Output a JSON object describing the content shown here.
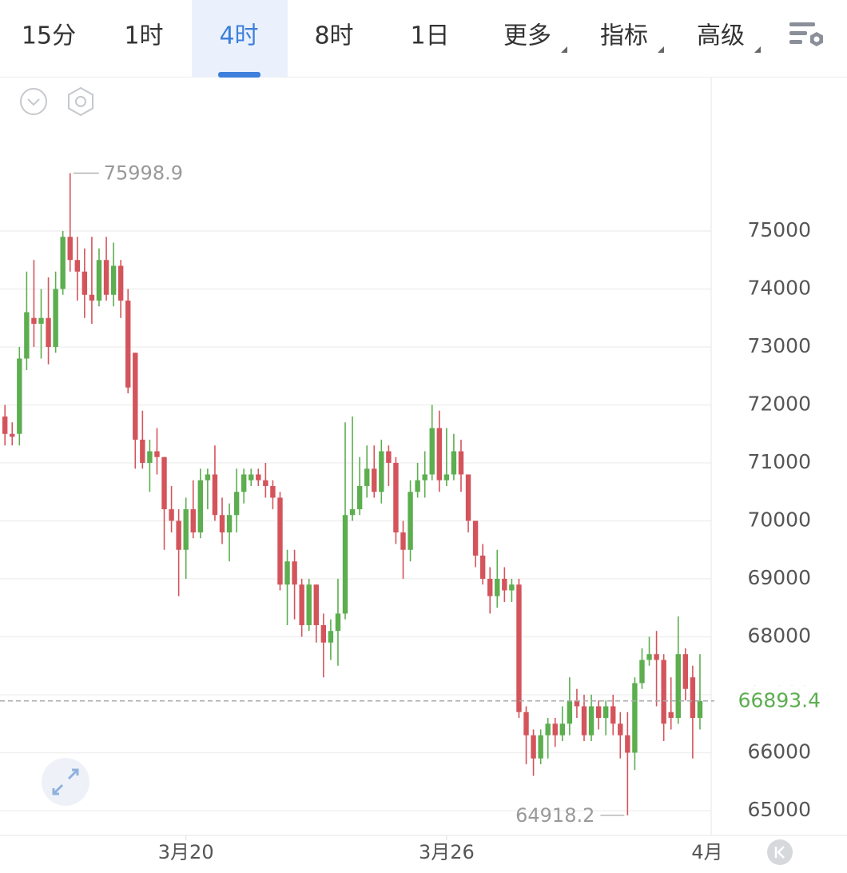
{
  "ui": {
    "tabs": [
      "15分",
      "1时",
      "4时",
      "8时",
      "1日",
      "更多",
      "指标",
      "高级"
    ],
    "selected_tab": 2
  },
  "chart_data": {
    "type": "candlestick",
    "up_color": "#5cae4f",
    "down_color": "#d4545c",
    "grid": true,
    "ylim": [
      64572,
      77648
    ],
    "yticks": [
      65000,
      66000,
      67000,
      68000,
      69000,
      70000,
      71000,
      72000,
      73000,
      74000,
      75000
    ],
    "categories": [
      null,
      null,
      null,
      null,
      null,
      null,
      null,
      null,
      null,
      null,
      null,
      null,
      null,
      null,
      null,
      null,
      null,
      null,
      null,
      null,
      null,
      null,
      null,
      null,
      null,
      "3月20",
      null,
      null,
      null,
      null,
      null,
      null,
      null,
      null,
      null,
      null,
      null,
      null,
      null,
      null,
      null,
      null,
      null,
      null,
      null,
      null,
      null,
      null,
      null,
      null,
      null,
      null,
      null,
      null,
      null,
      null,
      null,
      null,
      null,
      null,
      null,
      "3月26",
      null,
      null,
      null,
      null,
      null,
      null,
      null,
      null,
      null,
      null,
      null,
      null,
      null,
      null,
      null,
      null,
      null,
      null,
      null,
      null,
      null,
      null,
      null,
      null,
      null,
      null,
      null,
      null,
      null,
      null,
      null,
      null,
      null,
      null,
      null
    ],
    "end_label": "4月",
    "open": [
      71800,
      71500,
      71500,
      72800,
      73500,
      73400,
      73500,
      73000,
      74000,
      74900,
      74500,
      74300,
      73900,
      73800,
      74500,
      73900,
      74400,
      73800,
      72900,
      71400,
      71000,
      71200,
      71100,
      70200,
      70000,
      69500,
      70200,
      69800,
      70700,
      70800,
      70100,
      69800,
      70100,
      70500,
      70700,
      70800,
      70700,
      70600,
      70400,
      68900,
      69300,
      68900,
      68200,
      68900,
      68200,
      67900,
      68100,
      68400,
      70100,
      70200,
      70600,
      70900,
      70500,
      71200,
      71000,
      69800,
      69500,
      70500,
      70700,
      70800,
      71600,
      70700,
      70800,
      71200,
      70800,
      70000,
      69400,
      69000,
      68700,
      69000,
      68800,
      68900,
      66700,
      66300,
      65900,
      66300,
      66500,
      66300,
      66500,
      66900,
      66800,
      66300,
      66800,
      66600,
      66800,
      66500,
      66300,
      66000,
      67200,
      67600,
      67700,
      67600,
      66700,
      66600,
      67700,
      67300,
      66600
    ],
    "high": [
      72000,
      71700,
      73000,
      74300,
      74500,
      74000,
      74200,
      74300,
      75000,
      75998.9,
      74900,
      74700,
      74900,
      74700,
      74900,
      74800,
      74500,
      74000,
      72900,
      71900,
      71400,
      71600,
      71100,
      70600,
      70200,
      70400,
      70700,
      70900,
      70900,
      71300,
      70400,
      70300,
      70900,
      70900,
      70900,
      70900,
      71000,
      70700,
      70500,
      69500,
      69500,
      69000,
      69000,
      68900,
      68400,
      68300,
      69000,
      71700,
      71800,
      71100,
      71300,
      71300,
      71400,
      71300,
      71100,
      70000,
      70700,
      71000,
      71200,
      72000,
      71900,
      71600,
      71500,
      71400,
      70800,
      70000,
      69600,
      69200,
      69500,
      69200,
      69000,
      69000,
      66800,
      66400,
      66400,
      66600,
      66600,
      66800,
      67300,
      67100,
      67000,
      67000,
      66900,
      66900,
      67000,
      66700,
      66700,
      67300,
      67800,
      68000,
      68100,
      67700,
      67300,
      68350,
      67800,
      67500,
      67700
    ],
    "low": [
      71300,
      71300,
      71300,
      72600,
      73000,
      72800,
      72700,
      72900,
      73900,
      74300,
      73800,
      73500,
      73400,
      73700,
      73800,
      73700,
      73500,
      72200,
      70900,
      70900,
      70500,
      70800,
      69500,
      69800,
      68700,
      69000,
      69700,
      69700,
      70200,
      70000,
      69600,
      69300,
      69800,
      70300,
      70600,
      70600,
      70400,
      70200,
      68800,
      68200,
      68300,
      68000,
      68100,
      67900,
      67300,
      67600,
      67500,
      68300,
      70000,
      70100,
      70400,
      70400,
      70300,
      70600,
      69600,
      69000,
      69300,
      70400,
      70400,
      70700,
      70500,
      70600,
      70700,
      70500,
      69800,
      69200,
      68900,
      68400,
      68500,
      68600,
      68600,
      66600,
      65800,
      65600,
      65800,
      65900,
      66100,
      66200,
      66300,
      66600,
      66200,
      66200,
      66400,
      66300,
      66300,
      65900,
      64918.2,
      65700,
      67100,
      67500,
      66800,
      66200,
      66400,
      66500,
      66900,
      65900,
      66400
    ],
    "close": [
      71500,
      71450,
      72800,
      73600,
      73400,
      73500,
      73000,
      74000,
      74900,
      74500,
      74300,
      73900,
      73800,
      74500,
      73900,
      74400,
      73800,
      72300,
      71400,
      71000,
      71200,
      71100,
      70200,
      70000,
      69500,
      70200,
      69800,
      70700,
      70800,
      70100,
      69800,
      70100,
      70500,
      70800,
      70800,
      70700,
      70600,
      70400,
      68900,
      69300,
      68900,
      68200,
      68900,
      68200,
      67900,
      68100,
      68400,
      70100,
      70200,
      70600,
      70900,
      70500,
      71200,
      71000,
      69800,
      69500,
      70500,
      70700,
      70800,
      71600,
      70700,
      70800,
      71200,
      70800,
      70000,
      69400,
      69000,
      68700,
      69000,
      68800,
      68900,
      66700,
      66300,
      65900,
      66300,
      66500,
      66300,
      66500,
      66900,
      66800,
      66300,
      66800,
      66600,
      66800,
      66500,
      66300,
      66000,
      67200,
      67600,
      67700,
      67600,
      66500,
      66600,
      67700,
      67100,
      66600,
      66893.4
    ],
    "high_label": 75998.9,
    "high_index": 9,
    "low_label": 64918.2,
    "low_index": 86,
    "current_price": 66893.4
  }
}
